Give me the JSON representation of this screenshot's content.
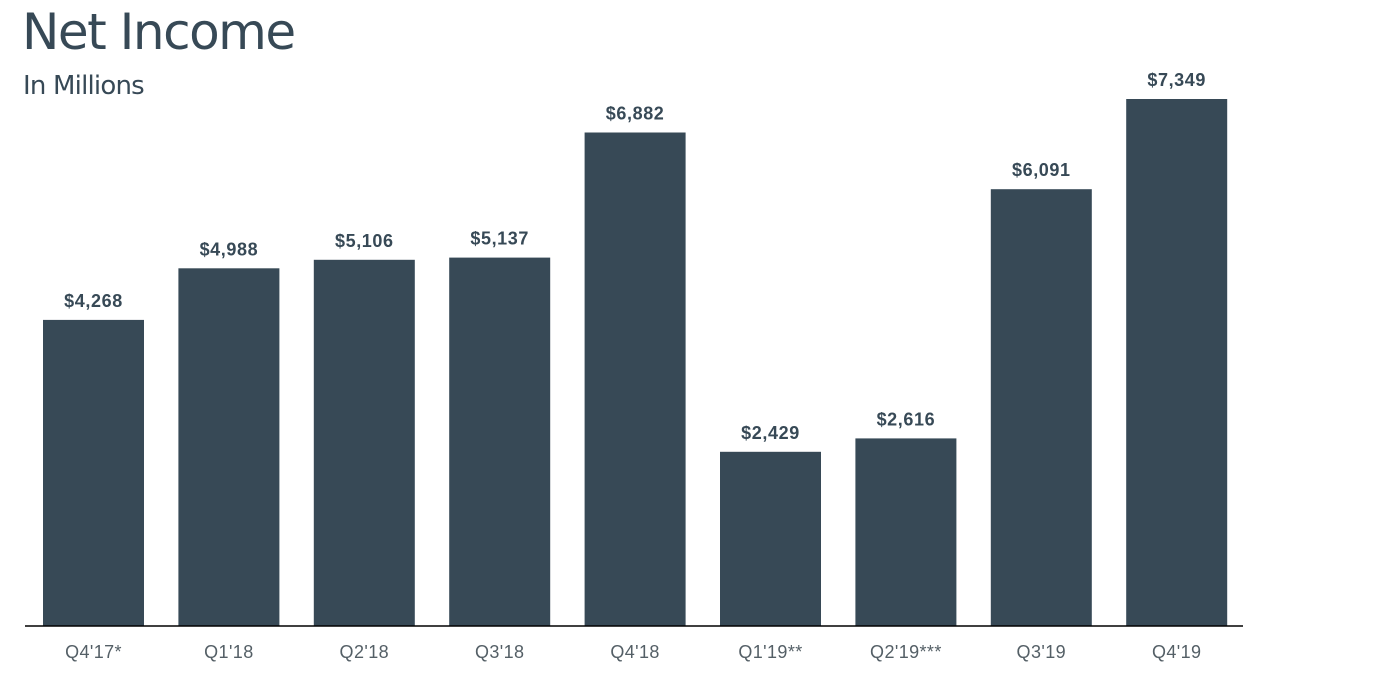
{
  "chart_data": {
    "type": "bar",
    "title": "Net Income",
    "subtitle": "In Millions",
    "xlabel": "",
    "ylabel": "",
    "categories": [
      "Q4'17*",
      "Q1'18",
      "Q2'18",
      "Q3'18",
      "Q4'18",
      "Q1'19**",
      "Q2'19***",
      "Q3'19",
      "Q4'19"
    ],
    "values": [
      4268,
      4988,
      5106,
      5137,
      6882,
      2429,
      2616,
      6091,
      7349
    ],
    "data_labels": [
      "$4,268",
      "$4,988",
      "$5,106",
      "$5,137",
      "$6,882",
      "$2,429",
      "$2,616",
      "$6,091",
      "$7,349"
    ],
    "ylim": [
      0,
      7349
    ],
    "grid": false,
    "legend": "none",
    "colors": {
      "bar": "#374956",
      "title": "#374956",
      "value_label": "#374956",
      "tick_label": "#545f66",
      "axis_line": "#000000"
    }
  }
}
